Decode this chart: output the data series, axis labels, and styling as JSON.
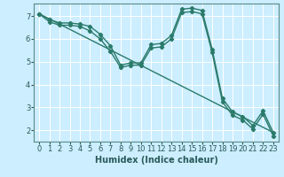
{
  "title": "",
  "xlabel": "Humidex (Indice chaleur)",
  "background_color": "#cceeff",
  "grid_color": "#ffffff",
  "line_color": "#2a7a6a",
  "xlim": [
    -0.5,
    23.5
  ],
  "ylim": [
    1.5,
    7.55
  ],
  "xticks": [
    0,
    1,
    2,
    3,
    4,
    5,
    6,
    7,
    8,
    9,
    10,
    11,
    12,
    13,
    14,
    15,
    16,
    17,
    18,
    19,
    20,
    21,
    22,
    23
  ],
  "yticks": [
    2,
    3,
    4,
    5,
    6,
    7
  ],
  "line1_x": [
    0,
    1,
    2,
    3,
    4,
    5,
    6,
    7,
    8,
    9,
    10,
    11,
    12,
    13,
    14,
    15,
    16,
    17,
    18,
    19,
    20,
    21,
    22,
    23
  ],
  "line1_y": [
    7.1,
    6.85,
    6.7,
    6.7,
    6.65,
    6.55,
    6.2,
    5.7,
    4.85,
    4.95,
    4.95,
    5.75,
    5.8,
    6.15,
    7.3,
    7.35,
    7.25,
    5.55,
    3.4,
    2.8,
    2.6,
    2.2,
    2.85,
    1.9
  ],
  "line2_x": [
    0,
    1,
    2,
    3,
    4,
    5,
    6,
    7,
    8,
    9,
    10,
    11,
    12,
    13,
    14,
    15,
    16,
    17,
    18,
    19,
    20,
    21,
    22,
    23
  ],
  "line2_y": [
    7.1,
    6.75,
    6.6,
    6.6,
    6.55,
    6.35,
    6.0,
    5.45,
    4.75,
    4.85,
    4.85,
    5.6,
    5.65,
    6.0,
    7.15,
    7.2,
    7.1,
    5.4,
    3.25,
    2.65,
    2.45,
    2.05,
    2.7,
    1.75
  ],
  "line3_x": [
    0,
    23
  ],
  "line3_y": [
    7.1,
    1.9
  ],
  "spine_color": "#5a8a8a",
  "tick_color": "#2a5a5a",
  "label_color": "#2a5a5a",
  "xlabel_color": "#2a5a5a"
}
